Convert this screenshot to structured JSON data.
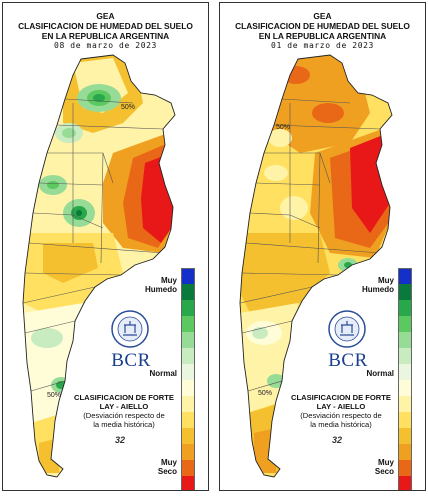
{
  "panels": [
    {
      "org": "GEA",
      "title_1": "CLASIFICACION DE HUMEDAD DEL SUELO",
      "title_2": "EN LA REPUBLICA ARGENTINA",
      "date": "08 de marzo de 2023"
    },
    {
      "org": "GEA",
      "title_1": "CLASIFICACION DE HUMEDAD DEL SUELO",
      "title_2": "EN LA REPUBLICA ARGENTINA",
      "date": "01 de marzo de 2023"
    }
  ],
  "legend": {
    "top_label_1": "Muy",
    "top_label_2": "Humedo",
    "mid_label": "Normal",
    "bottom_label_1": "Muy",
    "bottom_label_2": "Seco",
    "colors": [
      "#1430c8",
      "#0a7a3c",
      "#28a84a",
      "#5cc860",
      "#96dc96",
      "#c8ecc0",
      "#eaf6e0",
      "#fffcd8",
      "#fff3a8",
      "#ffe060",
      "#f4c030",
      "#f0a020",
      "#e86818",
      "#e81818"
    ]
  },
  "method": {
    "title": "CLASIFICACION DE FORTE LAY - AIELLO",
    "line1": "(Desviación respecto de",
    "line2": "la media histórica)"
  },
  "bcr": {
    "logo_text": "BCR",
    "seal_text": "BOLSA DE COMERCIO DE ROSARIO"
  },
  "contour_labels": [
    "50%",
    "50%",
    "50%",
    "50%"
  ],
  "brand_mark": "32"
}
